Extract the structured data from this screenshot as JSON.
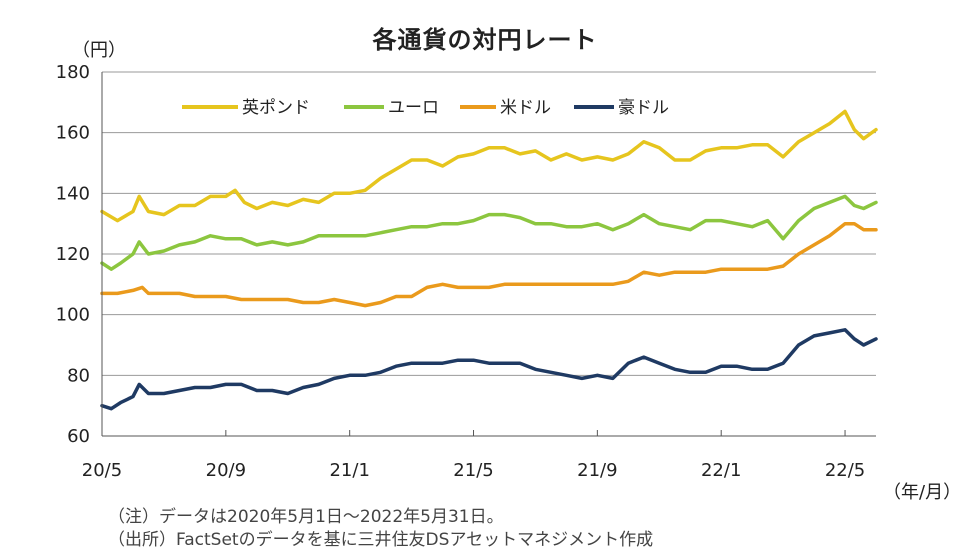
{
  "chart_data": {
    "type": "line",
    "title": "各通貨の対円レート",
    "yunit": "（円）",
    "xunit": "（年/月）",
    "ylim": [
      60,
      180
    ],
    "yticks": [
      60,
      80,
      100,
      120,
      140,
      160,
      180
    ],
    "xlim": [
      0,
      25
    ],
    "xticks": [
      {
        "x": 0,
        "label": "20/5"
      },
      {
        "x": 4,
        "label": "20/9"
      },
      {
        "x": 8,
        "label": "21/1"
      },
      {
        "x": 12,
        "label": "21/5"
      },
      {
        "x": 16,
        "label": "21/9"
      },
      {
        "x": 20,
        "label": "22/1"
      },
      {
        "x": 24,
        "label": "22/5"
      }
    ],
    "grid": true,
    "legend_position": "top-left",
    "series": [
      {
        "name": "英ポンド",
        "color": "#E6C51E",
        "points": [
          [
            0,
            134
          ],
          [
            0.5,
            131
          ],
          [
            1,
            134
          ],
          [
            1.2,
            139
          ],
          [
            1.5,
            134
          ],
          [
            2,
            133
          ],
          [
            2.5,
            136
          ],
          [
            3,
            136
          ],
          [
            3.5,
            139
          ],
          [
            4,
            139
          ],
          [
            4.3,
            141
          ],
          [
            4.6,
            137
          ],
          [
            5,
            135
          ],
          [
            5.5,
            137
          ],
          [
            6,
            136
          ],
          [
            6.5,
            138
          ],
          [
            7,
            137
          ],
          [
            7.5,
            140
          ],
          [
            8,
            140
          ],
          [
            8.5,
            141
          ],
          [
            9,
            145
          ],
          [
            9.5,
            148
          ],
          [
            10,
            151
          ],
          [
            10.5,
            151
          ],
          [
            11,
            149
          ],
          [
            11.5,
            152
          ],
          [
            12,
            153
          ],
          [
            12.5,
            155
          ],
          [
            13,
            155
          ],
          [
            13.5,
            153
          ],
          [
            14,
            154
          ],
          [
            14.5,
            151
          ],
          [
            15,
            153
          ],
          [
            15.5,
            151
          ],
          [
            16,
            152
          ],
          [
            16.5,
            151
          ],
          [
            17,
            153
          ],
          [
            17.5,
            157
          ],
          [
            18,
            155
          ],
          [
            18.5,
            151
          ],
          [
            19,
            151
          ],
          [
            19.5,
            154
          ],
          [
            20,
            155
          ],
          [
            20.5,
            155
          ],
          [
            21,
            156
          ],
          [
            21.5,
            156
          ],
          [
            22,
            152
          ],
          [
            22.5,
            157
          ],
          [
            23,
            160
          ],
          [
            23.5,
            163
          ],
          [
            24,
            167
          ],
          [
            24.3,
            161
          ],
          [
            24.6,
            158
          ],
          [
            25,
            161
          ]
        ]
      },
      {
        "name": "ユーロ",
        "color": "#8CC63F",
        "points": [
          [
            0,
            117
          ],
          [
            0.3,
            115
          ],
          [
            0.6,
            117
          ],
          [
            1,
            120
          ],
          [
            1.2,
            124
          ],
          [
            1.5,
            120
          ],
          [
            2,
            121
          ],
          [
            2.5,
            123
          ],
          [
            3,
            124
          ],
          [
            3.5,
            126
          ],
          [
            4,
            125
          ],
          [
            4.5,
            125
          ],
          [
            5,
            123
          ],
          [
            5.5,
            124
          ],
          [
            6,
            123
          ],
          [
            6.5,
            124
          ],
          [
            7,
            126
          ],
          [
            7.5,
            126
          ],
          [
            8,
            126
          ],
          [
            8.5,
            126
          ],
          [
            9,
            127
          ],
          [
            9.5,
            128
          ],
          [
            10,
            129
          ],
          [
            10.5,
            129
          ],
          [
            11,
            130
          ],
          [
            11.5,
            130
          ],
          [
            12,
            131
          ],
          [
            12.5,
            133
          ],
          [
            13,
            133
          ],
          [
            13.5,
            132
          ],
          [
            14,
            130
          ],
          [
            14.5,
            130
          ],
          [
            15,
            129
          ],
          [
            15.5,
            129
          ],
          [
            16,
            130
          ],
          [
            16.5,
            128
          ],
          [
            17,
            130
          ],
          [
            17.5,
            133
          ],
          [
            18,
            130
          ],
          [
            18.5,
            129
          ],
          [
            19,
            128
          ],
          [
            19.5,
            131
          ],
          [
            20,
            131
          ],
          [
            20.5,
            130
          ],
          [
            21,
            129
          ],
          [
            21.5,
            131
          ],
          [
            22,
            125
          ],
          [
            22.5,
            131
          ],
          [
            23,
            135
          ],
          [
            23.5,
            137
          ],
          [
            24,
            139
          ],
          [
            24.3,
            136
          ],
          [
            24.6,
            135
          ],
          [
            25,
            137
          ]
        ]
      },
      {
        "name": "米ドル",
        "color": "#EA9A1C",
        "points": [
          [
            0,
            107
          ],
          [
            0.5,
            107
          ],
          [
            1,
            108
          ],
          [
            1.3,
            109
          ],
          [
            1.5,
            107
          ],
          [
            2,
            107
          ],
          [
            2.5,
            107
          ],
          [
            3,
            106
          ],
          [
            3.5,
            106
          ],
          [
            4,
            106
          ],
          [
            4.5,
            105
          ],
          [
            5,
            105
          ],
          [
            5.5,
            105
          ],
          [
            6,
            105
          ],
          [
            6.5,
            104
          ],
          [
            7,
            104
          ],
          [
            7.5,
            105
          ],
          [
            8,
            104
          ],
          [
            8.5,
            103
          ],
          [
            9,
            104
          ],
          [
            9.5,
            106
          ],
          [
            10,
            106
          ],
          [
            10.5,
            109
          ],
          [
            11,
            110
          ],
          [
            11.5,
            109
          ],
          [
            12,
            109
          ],
          [
            12.5,
            109
          ],
          [
            13,
            110
          ],
          [
            13.5,
            110
          ],
          [
            14,
            110
          ],
          [
            14.5,
            110
          ],
          [
            15,
            110
          ],
          [
            15.5,
            110
          ],
          [
            16,
            110
          ],
          [
            16.5,
            110
          ],
          [
            17,
            111
          ],
          [
            17.5,
            114
          ],
          [
            18,
            113
          ],
          [
            18.5,
            114
          ],
          [
            19,
            114
          ],
          [
            19.5,
            114
          ],
          [
            20,
            115
          ],
          [
            20.5,
            115
          ],
          [
            21,
            115
          ],
          [
            21.5,
            115
          ],
          [
            22,
            116
          ],
          [
            22.5,
            120
          ],
          [
            23,
            123
          ],
          [
            23.5,
            126
          ],
          [
            24,
            130
          ],
          [
            24.3,
            130
          ],
          [
            24.6,
            128
          ],
          [
            25,
            128
          ]
        ]
      },
      {
        "name": "豪ドル",
        "color": "#1F3A63",
        "points": [
          [
            0,
            70
          ],
          [
            0.3,
            69
          ],
          [
            0.6,
            71
          ],
          [
            1,
            73
          ],
          [
            1.2,
            77
          ],
          [
            1.5,
            74
          ],
          [
            2,
            74
          ],
          [
            2.5,
            75
          ],
          [
            3,
            76
          ],
          [
            3.5,
            76
          ],
          [
            4,
            77
          ],
          [
            4.5,
            77
          ],
          [
            5,
            75
          ],
          [
            5.5,
            75
          ],
          [
            6,
            74
          ],
          [
            6.5,
            76
          ],
          [
            7,
            77
          ],
          [
            7.5,
            79
          ],
          [
            8,
            80
          ],
          [
            8.5,
            80
          ],
          [
            9,
            81
          ],
          [
            9.5,
            83
          ],
          [
            10,
            84
          ],
          [
            10.5,
            84
          ],
          [
            11,
            84
          ],
          [
            11.5,
            85
          ],
          [
            12,
            85
          ],
          [
            12.5,
            84
          ],
          [
            13,
            84
          ],
          [
            13.5,
            84
          ],
          [
            14,
            82
          ],
          [
            14.5,
            81
          ],
          [
            15,
            80
          ],
          [
            15.5,
            79
          ],
          [
            16,
            80
          ],
          [
            16.5,
            79
          ],
          [
            17,
            84
          ],
          [
            17.5,
            86
          ],
          [
            18,
            84
          ],
          [
            18.5,
            82
          ],
          [
            19,
            81
          ],
          [
            19.5,
            81
          ],
          [
            20,
            83
          ],
          [
            20.5,
            83
          ],
          [
            21,
            82
          ],
          [
            21.5,
            82
          ],
          [
            22,
            84
          ],
          [
            22.5,
            90
          ],
          [
            23,
            93
          ],
          [
            23.5,
            94
          ],
          [
            24,
            95
          ],
          [
            24.3,
            92
          ],
          [
            24.6,
            90
          ],
          [
            25,
            92
          ]
        ]
      }
    ]
  },
  "notes": {
    "line1": "（注）データは2020年5月1日～2022年5月31日。",
    "line2": "（出所）FactSetのデータを基に三井住友DSアセットマネジメント作成"
  }
}
